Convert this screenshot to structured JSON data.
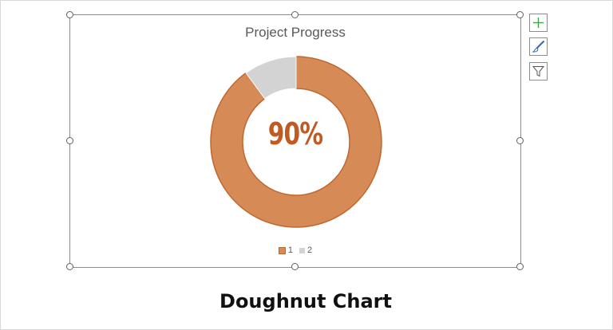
{
  "chart_data": {
    "type": "pie",
    "title": "Project Progress",
    "categories": [
      "1",
      "2"
    ],
    "values": [
      90,
      10
    ],
    "colors": [
      "#d68a55",
      "#d3d3d3"
    ],
    "center_label": "90%",
    "legend_position": "bottom"
  },
  "toolbar": {
    "icons": [
      "plus-icon",
      "paintbrush-icon",
      "filter-icon"
    ]
  },
  "caption": "Doughnut Chart",
  "colors": {
    "accent": "#c05a21",
    "slice_border": "#c0672f",
    "frame_border": "#8c8c8c"
  }
}
